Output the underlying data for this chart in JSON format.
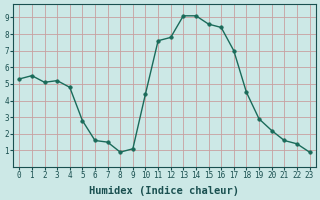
{
  "x": [
    0,
    1,
    2,
    3,
    4,
    5,
    6,
    7,
    8,
    9,
    10,
    11,
    12,
    13,
    14,
    15,
    16,
    17,
    18,
    19,
    20,
    21,
    22,
    23
  ],
  "y": [
    5.3,
    5.5,
    5.1,
    5.2,
    4.8,
    2.8,
    1.6,
    1.5,
    0.9,
    1.1,
    4.4,
    7.6,
    7.8,
    9.1,
    9.1,
    8.6,
    8.4,
    7.0,
    4.5,
    2.9,
    2.2,
    1.6,
    1.4,
    0.9
  ],
  "line_color": "#1a6b5a",
  "marker_color": "#1a6b5a",
  "bg_color": "#cce8e6",
  "grid_color": "#c8a0a0",
  "xlabel": "Humidex (Indice chaleur)",
  "xlim": [
    -0.5,
    23.5
  ],
  "ylim": [
    0,
    9.8
  ],
  "yticks": [
    1,
    2,
    3,
    4,
    5,
    6,
    7,
    8,
    9
  ],
  "xticks": [
    0,
    1,
    2,
    3,
    4,
    5,
    6,
    7,
    8,
    9,
    10,
    11,
    12,
    13,
    14,
    15,
    16,
    17,
    18,
    19,
    20,
    21,
    22,
    23
  ],
  "tick_label_fontsize": 5.5,
  "xlabel_fontsize": 7.5,
  "line_width": 1.0,
  "marker_size": 2.5
}
